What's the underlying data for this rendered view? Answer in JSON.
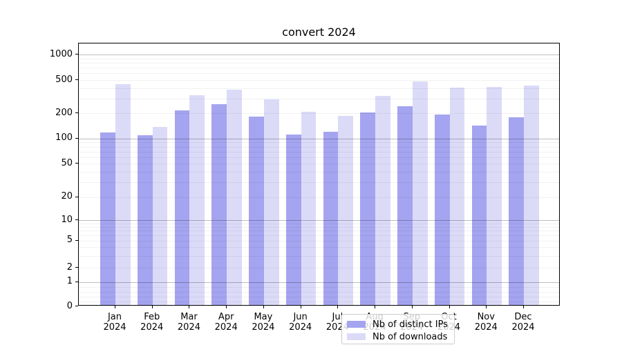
{
  "title": "convert 2024",
  "chart_data": {
    "type": "bar",
    "title": "convert 2024",
    "categories": [
      "Jan 2024",
      "Feb 2024",
      "Mar 2024",
      "Apr 2024",
      "May 2024",
      "Jun 2024",
      "Jul 2024",
      "Aug 2024",
      "Sep 2024",
      "Oct 2024",
      "Nov 2024",
      "Dec 2024"
    ],
    "months": [
      "Jan",
      "Feb",
      "Mar",
      "Apr",
      "May",
      "Jun",
      "Jul",
      "Aug",
      "Sep",
      "Oct",
      "Nov",
      "Dec"
    ],
    "year_label": "2024",
    "series": [
      {
        "name": "Nb of distinct IPs",
        "color": "#a4a4f0",
        "values": [
          113,
          105,
          210,
          248,
          176,
          107,
          116,
          200,
          236,
          188,
          139,
          173
        ]
      },
      {
        "name": "Nb of downloads",
        "color": "#dbdbf8",
        "values": [
          430,
          132,
          320,
          372,
          284,
          202,
          179,
          310,
          466,
          394,
          400,
          417
        ]
      }
    ],
    "yscale": "symlog",
    "yticks": [
      0,
      1,
      2,
      5,
      10,
      20,
      50,
      100,
      200,
      500,
      1000
    ],
    "ylim": [
      0,
      1360
    ],
    "grid": "horizontal major+minor",
    "legend_position": "lower center inside"
  }
}
